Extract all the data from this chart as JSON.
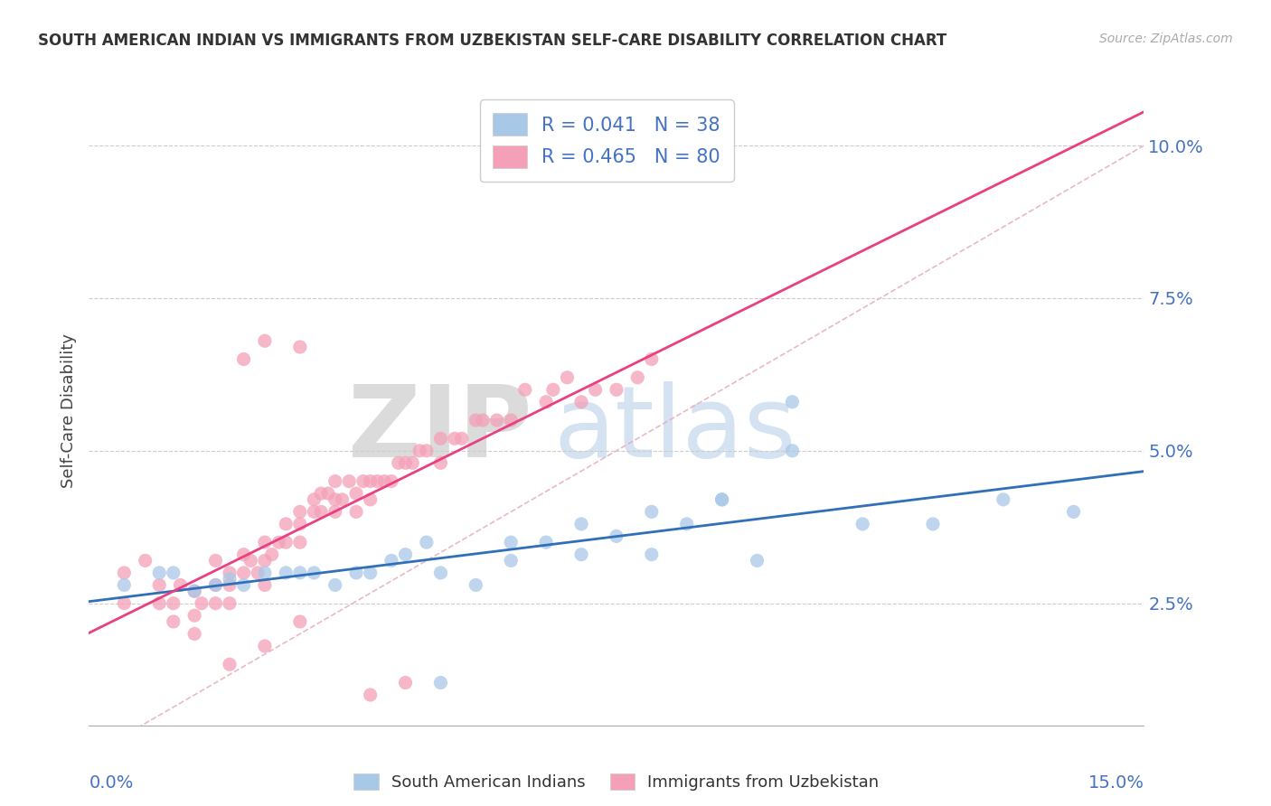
{
  "title": "SOUTH AMERICAN INDIAN VS IMMIGRANTS FROM UZBEKISTAN SELF-CARE DISABILITY CORRELATION CHART",
  "source": "Source: ZipAtlas.com",
  "ylabel": "Self-Care Disability",
  "yticks": [
    0.025,
    0.05,
    0.075,
    0.1
  ],
  "ytick_labels": [
    "2.5%",
    "5.0%",
    "7.5%",
    "10.0%"
  ],
  "xlim": [
    0.0,
    0.15
  ],
  "ylim": [
    0.005,
    0.108
  ],
  "legend_r1": "R = 0.041",
  "legend_n1": "N = 38",
  "legend_r2": "R = 0.465",
  "legend_n2": "N = 80",
  "color_blue": "#a8c8e8",
  "color_pink": "#f4a0b8",
  "color_blue_line": "#3070b8",
  "color_pink_line": "#e84080",
  "color_ref_line": "#e8b0c0",
  "blue_scatter_x": [
    0.005,
    0.01,
    0.012,
    0.015,
    0.018,
    0.02,
    0.022,
    0.025,
    0.028,
    0.03,
    0.032,
    0.035,
    0.038,
    0.04,
    0.043,
    0.045,
    0.048,
    0.05,
    0.055,
    0.06,
    0.065,
    0.07,
    0.075,
    0.08,
    0.085,
    0.09,
    0.095,
    0.1,
    0.11,
    0.12,
    0.13,
    0.14,
    0.1,
    0.09,
    0.08,
    0.07,
    0.06,
    0.05
  ],
  "blue_scatter_y": [
    0.028,
    0.03,
    0.03,
    0.027,
    0.028,
    0.029,
    0.028,
    0.03,
    0.03,
    0.03,
    0.03,
    0.028,
    0.03,
    0.03,
    0.032,
    0.033,
    0.035,
    0.03,
    0.028,
    0.032,
    0.035,
    0.033,
    0.036,
    0.033,
    0.038,
    0.042,
    0.032,
    0.05,
    0.038,
    0.038,
    0.042,
    0.04,
    0.058,
    0.042,
    0.04,
    0.038,
    0.035,
    0.012
  ],
  "pink_scatter_x": [
    0.005,
    0.005,
    0.008,
    0.01,
    0.01,
    0.012,
    0.012,
    0.013,
    0.015,
    0.015,
    0.015,
    0.016,
    0.018,
    0.018,
    0.018,
    0.02,
    0.02,
    0.02,
    0.022,
    0.022,
    0.023,
    0.024,
    0.025,
    0.025,
    0.025,
    0.026,
    0.027,
    0.028,
    0.028,
    0.03,
    0.03,
    0.03,
    0.032,
    0.032,
    0.033,
    0.033,
    0.034,
    0.035,
    0.035,
    0.036,
    0.037,
    0.038,
    0.038,
    0.039,
    0.04,
    0.04,
    0.041,
    0.042,
    0.043,
    0.044,
    0.045,
    0.046,
    0.047,
    0.048,
    0.05,
    0.05,
    0.052,
    0.053,
    0.055,
    0.056,
    0.058,
    0.06,
    0.062,
    0.065,
    0.066,
    0.068,
    0.07,
    0.072,
    0.075,
    0.078,
    0.08,
    0.022,
    0.025,
    0.03,
    0.035,
    0.04,
    0.045,
    0.02,
    0.025,
    0.03
  ],
  "pink_scatter_y": [
    0.03,
    0.025,
    0.032,
    0.025,
    0.028,
    0.022,
    0.025,
    0.028,
    0.02,
    0.023,
    0.027,
    0.025,
    0.025,
    0.028,
    0.032,
    0.025,
    0.028,
    0.03,
    0.03,
    0.033,
    0.032,
    0.03,
    0.028,
    0.032,
    0.035,
    0.033,
    0.035,
    0.035,
    0.038,
    0.038,
    0.035,
    0.04,
    0.04,
    0.042,
    0.04,
    0.043,
    0.043,
    0.04,
    0.042,
    0.042,
    0.045,
    0.04,
    0.043,
    0.045,
    0.045,
    0.042,
    0.045,
    0.045,
    0.045,
    0.048,
    0.048,
    0.048,
    0.05,
    0.05,
    0.048,
    0.052,
    0.052,
    0.052,
    0.055,
    0.055,
    0.055,
    0.055,
    0.06,
    0.058,
    0.06,
    0.062,
    0.058,
    0.06,
    0.06,
    0.062,
    0.065,
    0.065,
    0.068,
    0.067,
    0.045,
    0.01,
    0.012,
    0.015,
    0.018,
    0.022
  ]
}
